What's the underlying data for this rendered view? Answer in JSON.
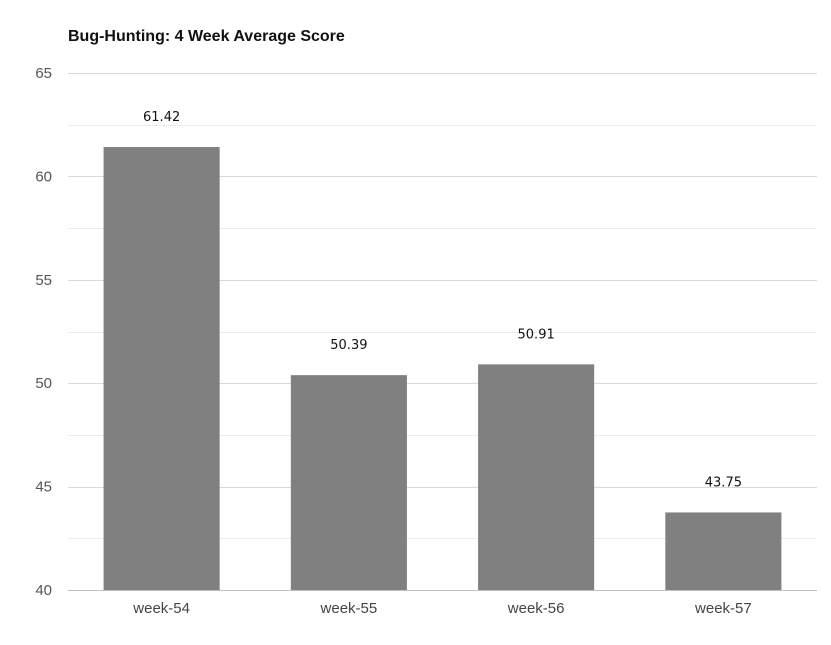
{
  "chart_data": {
    "type": "bar",
    "title": "Bug-Hunting: 4 Week Average Score",
    "xlabel": "",
    "ylabel": "",
    "categories": [
      "week-54",
      "week-55",
      "week-56",
      "week-57"
    ],
    "values": [
      61.42,
      50.39,
      50.91,
      43.75
    ],
    "data_labels": [
      "61.42",
      "50.39",
      "50.91",
      "43.75"
    ],
    "ylim": [
      40,
      65
    ],
    "yticks": [
      40,
      45,
      50,
      55,
      60,
      65
    ],
    "ytick_labels": [
      "40",
      "45",
      "50",
      "55",
      "60",
      "65"
    ],
    "grid": true,
    "legend": "none",
    "bar_color": "#808080",
    "grid_color": "#d9d9d9"
  }
}
